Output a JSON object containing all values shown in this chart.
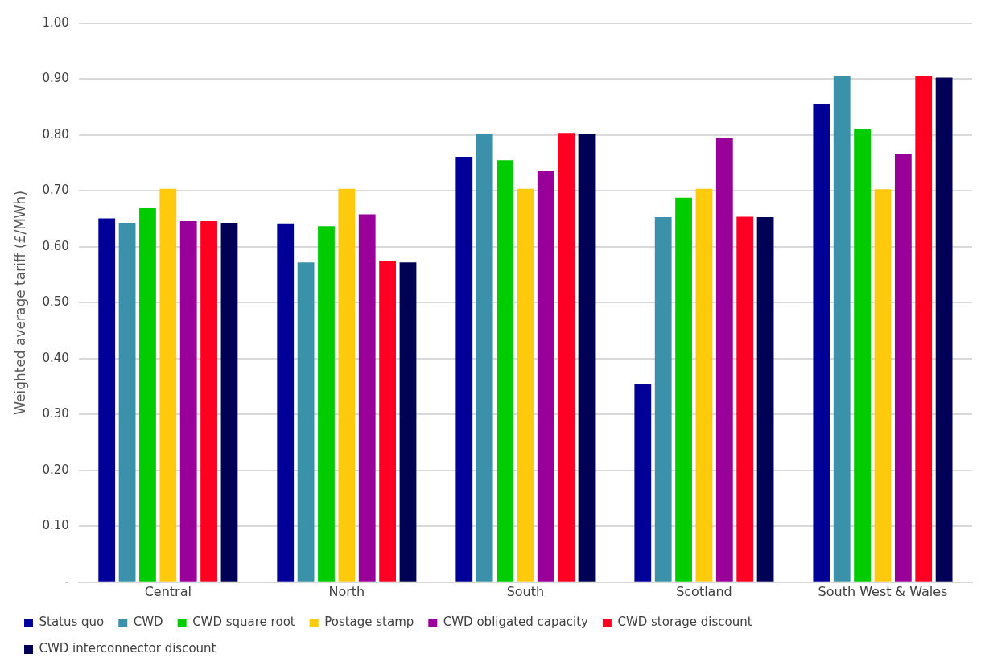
{
  "chart_data": {
    "type": "bar",
    "ylabel": "Weighted average tariff (£/MWh)",
    "categories": [
      "Central",
      "North",
      "South",
      "Scotland",
      "South West & Wales"
    ],
    "series": [
      {
        "name": "Status quo",
        "color": "#000099",
        "values": [
          0.651,
          0.642,
          0.761,
          0.354,
          0.856
        ]
      },
      {
        "name": "CWD",
        "color": "#3a91a9",
        "values": [
          0.643,
          0.572,
          0.803,
          0.653,
          0.905
        ]
      },
      {
        "name": "CWD square root",
        "color": "#00cc00",
        "values": [
          0.669,
          0.637,
          0.755,
          0.688,
          0.811
        ]
      },
      {
        "name": "Postage stamp",
        "color": "#ffc90e",
        "values": [
          0.704,
          0.704,
          0.704,
          0.704,
          0.703
        ]
      },
      {
        "name": "CWD obligated capacity",
        "color": "#990099",
        "values": [
          0.646,
          0.658,
          0.736,
          0.795,
          0.767
        ]
      },
      {
        "name": "CWD storage discount",
        "color": "#ff0022",
        "values": [
          0.646,
          0.575,
          0.804,
          0.654,
          0.905
        ]
      },
      {
        "name": "CWD interconnector discount",
        "color": "#000055",
        "values": [
          0.643,
          0.572,
          0.803,
          0.653,
          0.903
        ]
      }
    ],
    "ylim": [
      0,
      1
    ],
    "yticks": [
      {
        "value": 0,
        "label": "-"
      },
      {
        "value": 0.1,
        "label": "0.10"
      },
      {
        "value": 0.2,
        "label": "0.20"
      },
      {
        "value": 0.3,
        "label": "0.30"
      },
      {
        "value": 0.4,
        "label": "0.40"
      },
      {
        "value": 0.5,
        "label": "0.50"
      },
      {
        "value": 0.6,
        "label": "0.60"
      },
      {
        "value": 0.7,
        "label": "0.70"
      },
      {
        "value": 0.8,
        "label": "0.80"
      },
      {
        "value": 0.9,
        "label": "0.90"
      },
      {
        "value": 1,
        "label": "1.00"
      }
    ],
    "grid": "y",
    "legend": "bottom"
  }
}
